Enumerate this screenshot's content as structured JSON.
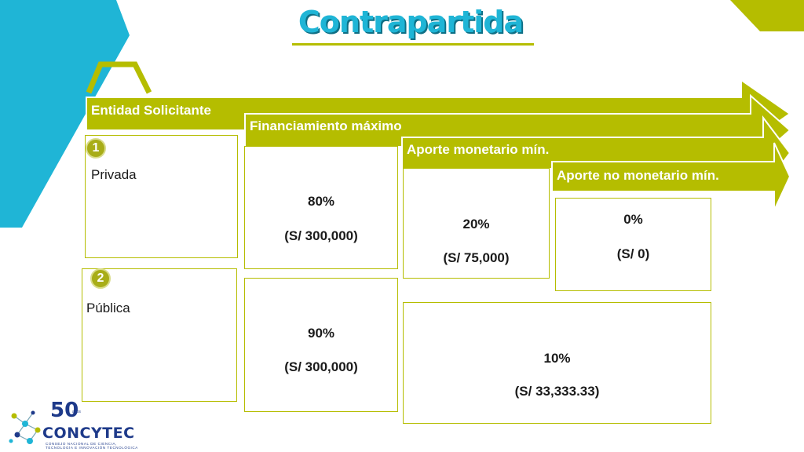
{
  "title": "Contrapartida",
  "colors": {
    "accent_green": "#b5bd00",
    "accent_blue": "#1fb5d6",
    "text": "#1a1a1a"
  },
  "arrows": [
    {
      "label": "Entidad Solicitante"
    },
    {
      "label": "Financiamiento máximo"
    },
    {
      "label": "Aporte monetario mín."
    },
    {
      "label": "Aporte no monetario mín."
    }
  ],
  "entities": [
    {
      "number": "1",
      "name": "Privada"
    },
    {
      "number": "2",
      "name": "Pública"
    }
  ],
  "financiamiento": [
    {
      "percent": "80%",
      "amount": "(S/ 300,000)"
    },
    {
      "percent": "90%",
      "amount": "(S/ 300,000)"
    }
  ],
  "aporte_monetario": [
    {
      "percent": "20%",
      "amount": "(S/ 75,000)"
    },
    {
      "percent": "10%",
      "amount": "(S/ 33,333.33)"
    }
  ],
  "aporte_no_monetario": [
    {
      "percent": "0%",
      "amount": "(S/ 0)"
    }
  ],
  "logo": {
    "anniversary": "50",
    "anniversary_label": "años",
    "name": "CONCYTEC",
    "tagline_1": "CONSEJO NACIONAL DE CIENCIA,",
    "tagline_2": "TECNOLOGÍA E INNOVACIÓN TECNOLÓGICA"
  }
}
